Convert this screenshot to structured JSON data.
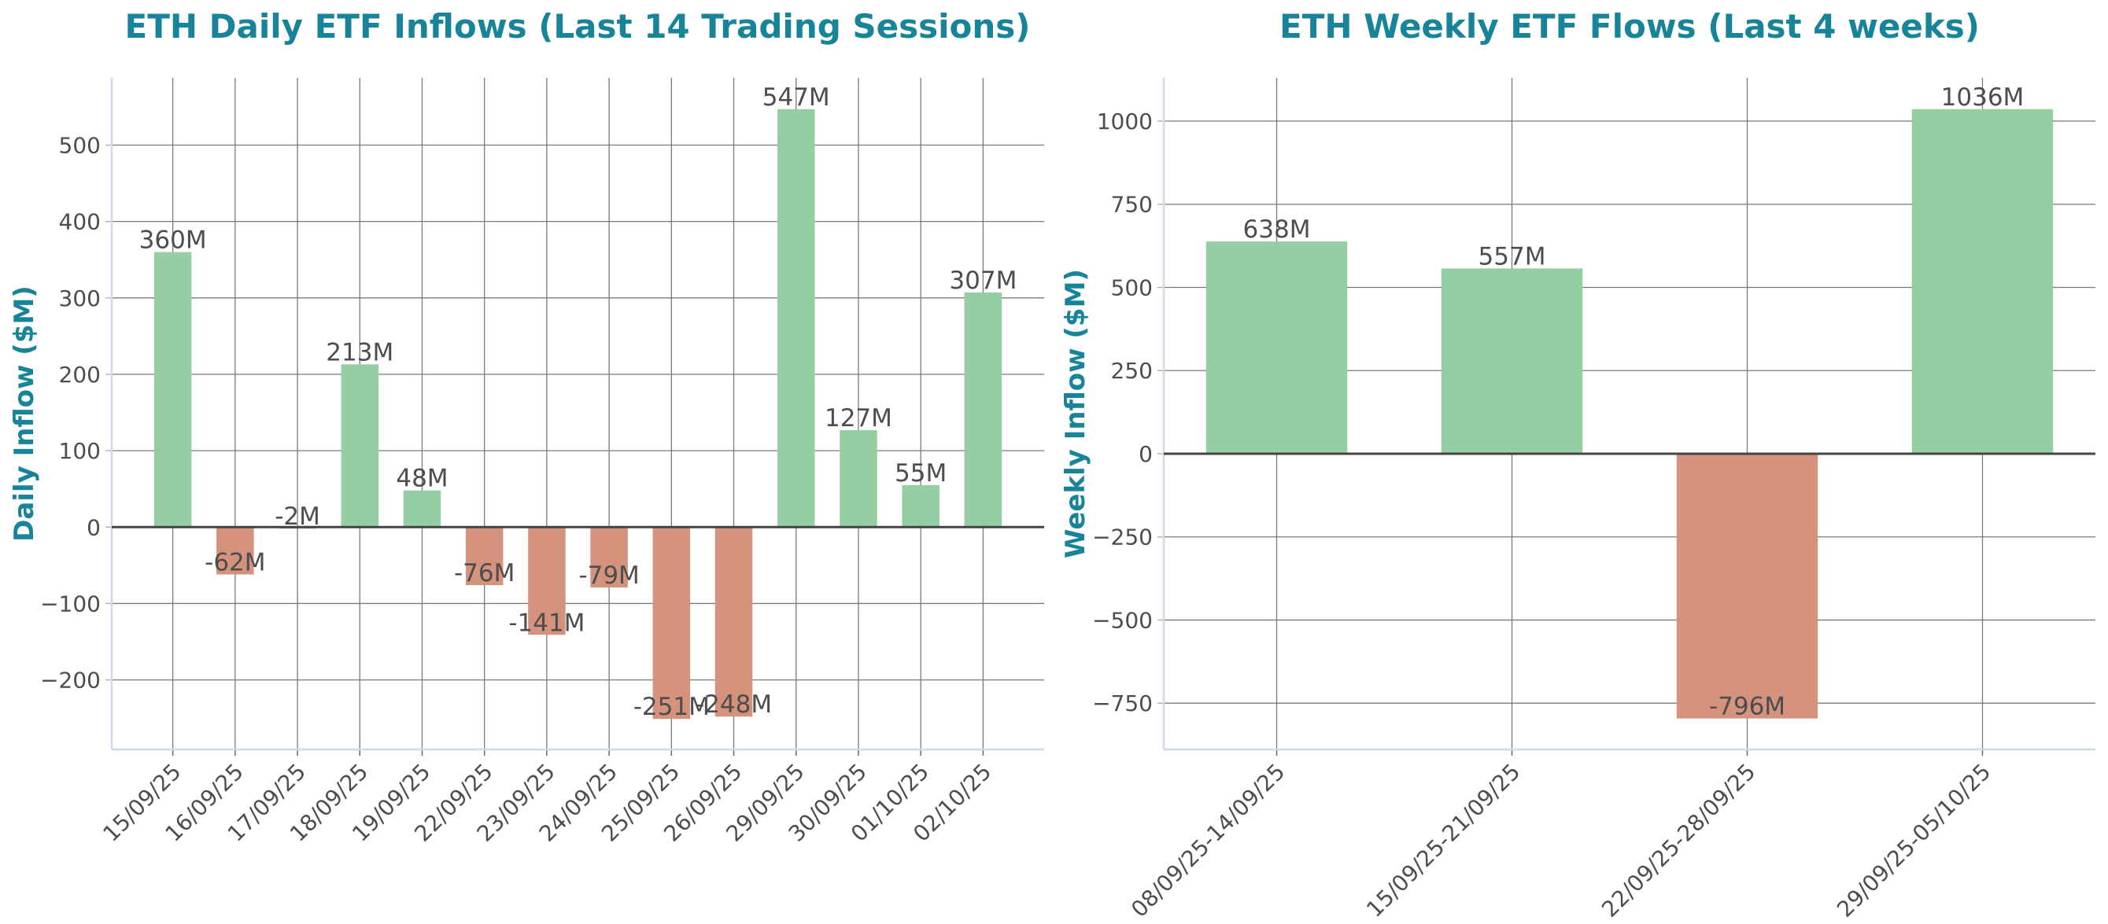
{
  "colors": {
    "title": "#17849a",
    "positive": "#93cda0",
    "negative": "#d4917b",
    "grid": "#7a7a7a",
    "zero_line": "#444444",
    "spine": "#cfd8e3"
  },
  "chart_data": [
    {
      "type": "bar",
      "title": "ETH Daily ETF Inflows (Last 14 Trading Sessions)",
      "xlabel": "",
      "ylabel": "Daily Inflow ($M)",
      "categories": [
        "15/09/25",
        "16/09/25",
        "17/09/25",
        "18/09/25",
        "19/09/25",
        "22/09/25",
        "23/09/25",
        "24/09/25",
        "25/09/25",
        "26/09/25",
        "29/09/25",
        "30/09/25",
        "01/10/25",
        "02/10/25"
      ],
      "values": [
        360,
        -62,
        -2,
        213,
        48,
        -76,
        -141,
        -79,
        -251,
        -248,
        547,
        127,
        55,
        307
      ],
      "data_labels": [
        "360M",
        "-62M",
        "-2M",
        "213M",
        "48M",
        "-76M",
        "-141M",
        "-79M",
        "-251M",
        "-248M",
        "547M",
        "127M",
        "55M",
        "307M"
      ],
      "yticks": [
        -200,
        -100,
        0,
        100,
        200,
        300,
        400,
        500
      ],
      "ytick_labels": [
        "−200",
        "−100",
        "0",
        "100",
        "200",
        "300",
        "400",
        "500"
      ],
      "ylim": [
        -291,
        588
      ],
      "grid": true
    },
    {
      "type": "bar",
      "title": "ETH Weekly ETF Flows (Last 4 weeks)",
      "xlabel": "",
      "ylabel": "Weekly Inflow ($M)",
      "categories": [
        "08/09/25-14/09/25",
        "15/09/25-21/09/25",
        "22/09/25-28/09/25",
        "29/09/25-05/10/25"
      ],
      "values": [
        638,
        557,
        -796,
        1036
      ],
      "data_labels": [
        "638M",
        "557M",
        "-796M",
        "1036M"
      ],
      "yticks": [
        -750,
        -500,
        -250,
        0,
        250,
        500,
        750,
        1000
      ],
      "ytick_labels": [
        "−750",
        "−500",
        "−250",
        "0",
        "250",
        "500",
        "750",
        "1000"
      ],
      "ylim": [
        -889,
        1130
      ],
      "grid": true
    }
  ]
}
